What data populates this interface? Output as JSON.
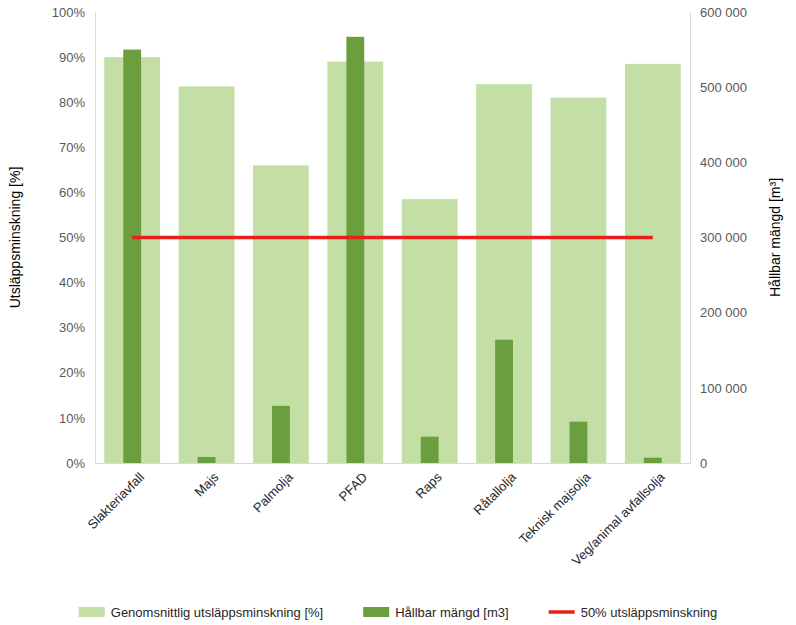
{
  "chart_data": {
    "type": "bar",
    "categories": [
      "Slakteriavfall",
      "Majs",
      "Palmolja",
      "PFAD",
      "Raps",
      "Råtallolja",
      "Teknisk majsolja",
      "Veg/animal avfallsolja"
    ],
    "y_label": "Utsläppsminskning [%]",
    "y2_label": "Hållbar mängd [m³]",
    "ylim": [
      0,
      100
    ],
    "yticks": [
      {
        "value": 0,
        "label": "0%"
      },
      {
        "value": 10,
        "label": "10%"
      },
      {
        "value": 20,
        "label": "20%"
      },
      {
        "value": 30,
        "label": "30%"
      },
      {
        "value": 40,
        "label": "40%"
      },
      {
        "value": 50,
        "label": "50%"
      },
      {
        "value": 60,
        "label": "60%"
      },
      {
        "value": 70,
        "label": "70%"
      },
      {
        "value": 80,
        "label": "80%"
      },
      {
        "value": 90,
        "label": "90%"
      },
      {
        "value": 100,
        "label": "100%"
      }
    ],
    "y2lim": [
      0,
      600000
    ],
    "y2ticks": [
      0,
      {
        "value": 100000,
        "label": "100 000"
      },
      {
        "value": 200000,
        "label": "200 000"
      },
      {
        "value": 300000,
        "label": "300 000"
      },
      {
        "value": 400000,
        "label": "400 000"
      },
      {
        "value": 500000,
        "label": "500 000"
      },
      {
        "value": 600000,
        "label": "600 000"
      }
    ],
    "legend": "bottom",
    "series": [
      {
        "name": "Genomsnittlig utsläppsminskning [%]",
        "type": "bar",
        "color": "#c3dfa6",
        "values": [
          90,
          83.5,
          66,
          89,
          58.5,
          84,
          81,
          88.5
        ]
      },
      {
        "name": "Hållbar mängd [m3]",
        "type": "bar",
        "axis": "y2",
        "color": "#6b9e3e",
        "values": [
          550000,
          8000,
          76000,
          567000,
          35000,
          164000,
          55000,
          7000
        ]
      },
      {
        "name": "50% utsläppsminskning",
        "type": "line",
        "color": "#e8201c",
        "line_style": "solid",
        "values": [
          50,
          50,
          50,
          50,
          50,
          50,
          50,
          50
        ]
      }
    ]
  }
}
